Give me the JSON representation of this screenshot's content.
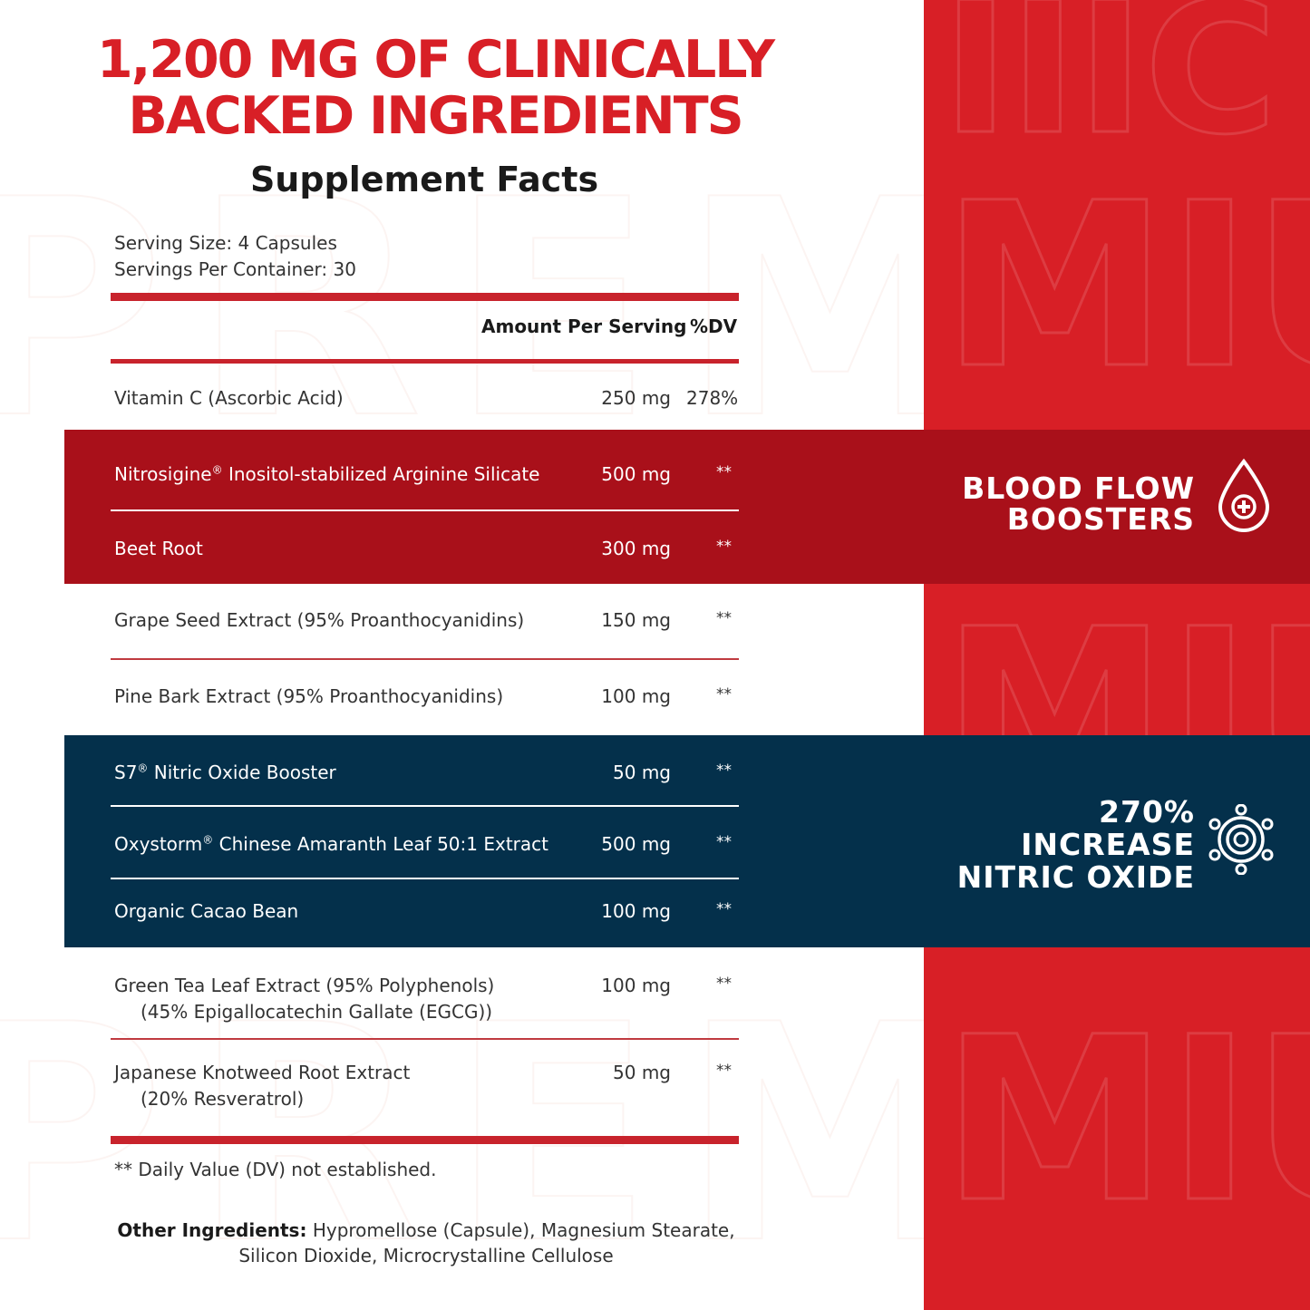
{
  "headline": {
    "line1": "1,200 MG OF CLINICALLY",
    "line2": "BACKED INGREDIENTS"
  },
  "panel_title": "Supplement Facts",
  "serving_size": "Serving Size: 4 Capsules",
  "servings_per_container": "Servings Per Container: 30",
  "columns": {
    "amount": "Amount Per Serving",
    "dv": "%DV"
  },
  "rows": [
    {
      "name": "Vitamin C (Ascorbic Acid)",
      "amount": "250 mg",
      "dv": "278%"
    },
    {
      "name": "Nitrosigine",
      "reg": "®",
      "name_rest": " Inositol-stabilized Arginine Silicate",
      "amount": "500 mg",
      "dv": "**"
    },
    {
      "name": "Beet Root",
      "amount": "300 mg",
      "dv": "**"
    },
    {
      "name": "Grape Seed Extract (95% Proanthocyanidins)",
      "amount": "150 mg",
      "dv": "**"
    },
    {
      "name": "Pine Bark Extract (95% Proanthocyanidins)",
      "amount": "100 mg",
      "dv": "**"
    },
    {
      "name": "S7",
      "reg": "®",
      "name_rest": " Nitric Oxide Booster",
      "amount": "50 mg",
      "dv": "**"
    },
    {
      "name": "Oxystorm",
      "reg": "®",
      "name_rest": " Chinese Amaranth Leaf 50:1 Extract",
      "amount": "500 mg",
      "dv": "**"
    },
    {
      "name": "Organic Cacao Bean",
      "amount": "100 mg",
      "dv": "**"
    },
    {
      "name": "Green Tea Leaf Extract (95% Polyphenols)",
      "sub": "(45% Epigallocatechin Gallate (EGCG))",
      "amount": "100 mg",
      "dv": "**"
    },
    {
      "name": "Japanese Knotweed Root Extract",
      "sub": "(20% Resveratrol)",
      "amount": "50 mg",
      "dv": "**"
    }
  ],
  "footnote": "** Daily Value (DV) not established.",
  "other_ingredients": {
    "label": "Other Ingredients:",
    "text": " Hypromellose (Capsule), Magnesium Stearate, Silicon Dioxide, Microcrystalline Cellulose"
  },
  "callouts": {
    "blood_flow": {
      "line1": "BLOOD FLOW",
      "line2": "BOOSTERS",
      "icon": "blood-drop-plus-icon"
    },
    "nitric": {
      "line1": "270%",
      "line2": "INCREASE",
      "line3": "NITRIC OXIDE",
      "icon": "molecule-icon"
    }
  },
  "colors": {
    "brand_red": "#d81f26",
    "band_red": "#a9101a",
    "band_navy": "#04304b"
  }
}
